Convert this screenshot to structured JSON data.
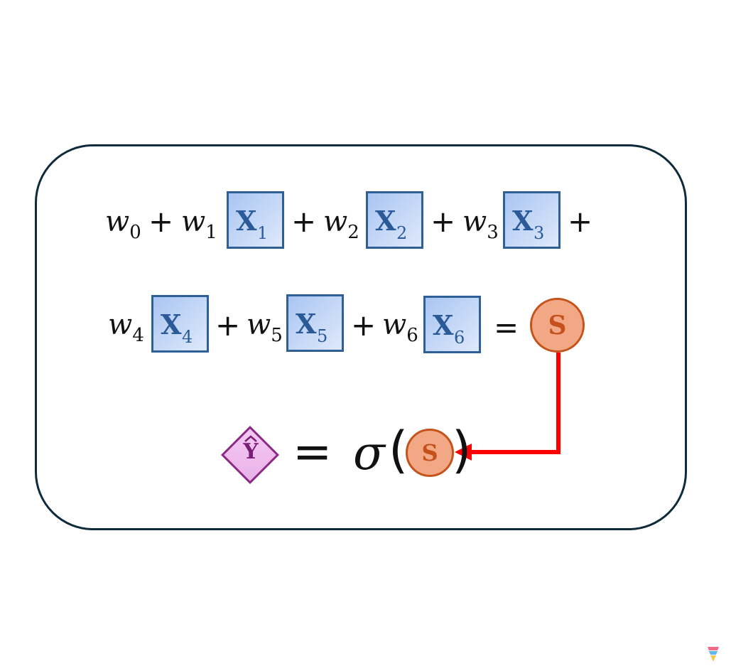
{
  "equation": {
    "row1": {
      "w0": "w",
      "w0_sub": "0",
      "plus1": "+",
      "w1": "w",
      "w1_sub": "1",
      "x1": "X",
      "x1_sub": "1",
      "plus2": "+",
      "w2": "w",
      "w2_sub": "2",
      "x2": "X",
      "x2_sub": "2",
      "plus3": "+",
      "w3": "w",
      "w3_sub": "3",
      "x3": "X",
      "x3_sub": "3",
      "plus4": "+"
    },
    "row2": {
      "w4": "w",
      "w4_sub": "4",
      "x4": "X",
      "x4_sub": "4",
      "plus5": "+",
      "w5": "w",
      "w5_sub": "5",
      "x5": "X",
      "x5_sub": "5",
      "plus6": "+",
      "w6": "w",
      "w6_sub": "6",
      "x6": "X",
      "x6_sub": "6",
      "equals": "=",
      "s": "S"
    },
    "row3": {
      "y": "Y",
      "equals": "=",
      "sigma": "σ",
      "open_paren": "(",
      "s": "S",
      "close_paren": ")"
    }
  },
  "colors": {
    "panel_border": "#0f2a3a",
    "x_box_border": "#2f5f97",
    "x_text": "#2a5a98",
    "s_fill": "#f2a885",
    "s_border": "#c4541c",
    "diamond_border": "#8a2a86",
    "diamond_fill": "#f5c9f3",
    "arrow": "#ff0000"
  },
  "icons": {
    "watermark": "gemini-logo-icon"
  }
}
